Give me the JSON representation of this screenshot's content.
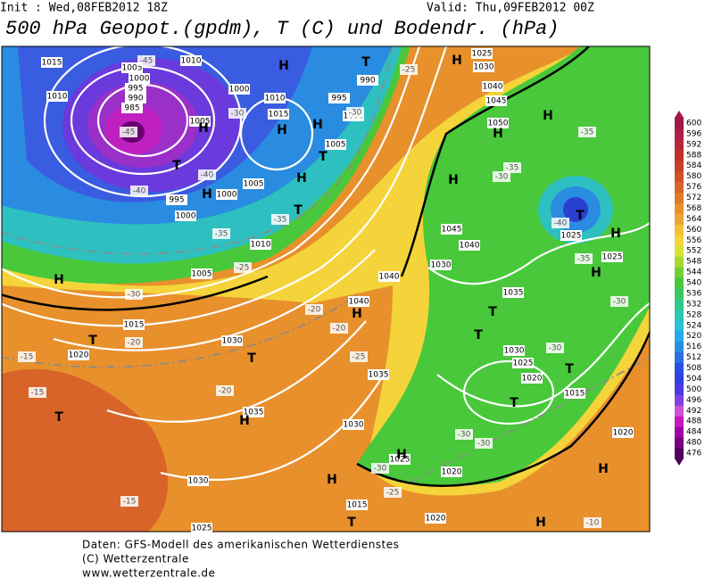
{
  "header": {
    "init": "Init : Wed,08FEB2012 18Z",
    "valid": "Valid: Thu,09FEB2012 00Z",
    "title": "500 hPa Geopot.(gpdm), T (C) und Bodendr. (hPa)"
  },
  "footer": [
    "Daten: GFS-Modell des amerikanischen Wetterdienstes",
    "(C) Wetterzentrale",
    "www.wetterzentrale.de"
  ],
  "colorbar": {
    "values": [
      476,
      480,
      484,
      488,
      492,
      496,
      500,
      504,
      508,
      512,
      516,
      520,
      524,
      528,
      532,
      536,
      540,
      544,
      548,
      552,
      556,
      560,
      564,
      568,
      572,
      576,
      580,
      584,
      588,
      592,
      596,
      600
    ],
    "colors": [
      "#50005a",
      "#7a0080",
      "#a000a8",
      "#c818c0",
      "#d050d8",
      "#8040e0",
      "#5038e0",
      "#3040e0",
      "#2850e0",
      "#2a70e0",
      "#2a8ce0",
      "#28a8e8",
      "#2ac0d8",
      "#2ec8b0",
      "#30c890",
      "#38c860",
      "#48c83a",
      "#70d030",
      "#a8d830",
      "#d8e030",
      "#f4d43a",
      "#f4c038",
      "#eca434",
      "#e8902c",
      "#e07a2a",
      "#d8642a",
      "#d05028",
      "#c84028",
      "#c03028",
      "#b82838",
      "#b02048",
      "#a01848"
    ]
  },
  "map": {
    "isobar_labels": [
      "1015",
      "1005",
      "1010",
      "1000",
      "995",
      "990",
      "985",
      "1010",
      "1005",
      "1000",
      "1010",
      "1015",
      "995",
      "990",
      "1000",
      "1005",
      "1005",
      "1000",
      "995",
      "1000",
      "1010",
      "1005",
      "1015",
      "1020",
      "1030",
      "1040",
      "1040",
      "1035",
      "1035",
      "1030",
      "1030",
      "1025",
      "1025",
      "1030",
      "1040",
      "1045",
      "1050",
      "1045",
      "1040",
      "1030",
      "1035",
      "1030",
      "1025",
      "1020",
      "1015",
      "1025",
      "1025",
      "1020",
      "1020",
      "1020",
      "1015",
      "1025"
    ],
    "temperature_labels": [
      "-45",
      "-45",
      "-40",
      "-40",
      "-35",
      "-35",
      "-30",
      "-30",
      "-25",
      "-20",
      "-20",
      "-20",
      "-15",
      "-15",
      "-20",
      "-25",
      "-15",
      "-10",
      "-25",
      "-30",
      "-35",
      "-35",
      "-30",
      "-30",
      "-30",
      "-35",
      "-40",
      "-30",
      "-30",
      "-30",
      "-25"
    ],
    "pressure_centers": [
      "H",
      "T",
      "H",
      "H",
      "H",
      "H",
      "T",
      "T",
      "H",
      "H",
      "T",
      "H",
      "H",
      "H",
      "T",
      "H",
      "H",
      "H",
      "T",
      "T",
      "T",
      "T",
      "H",
      "T",
      "T",
      "H",
      "T",
      "H",
      "H",
      "T",
      "H",
      "H"
    ]
  }
}
